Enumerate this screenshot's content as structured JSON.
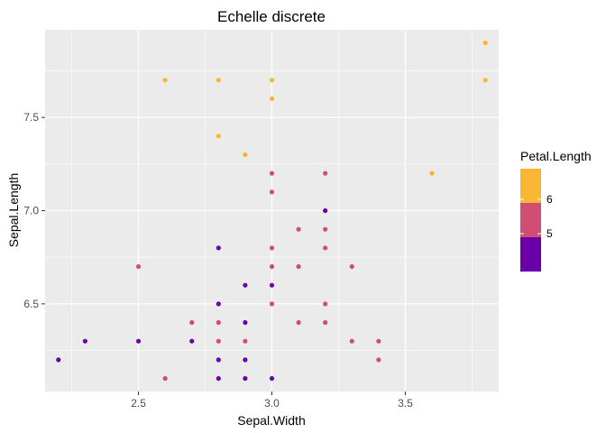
{
  "chart_data": {
    "type": "scatter",
    "title": "Echelle discrete",
    "xlabel": "Sepal.Width",
    "ylabel": "Sepal.Length",
    "xlim": [
      2.15,
      3.85
    ],
    "ylim": [
      6.03,
      7.97
    ],
    "x_ticks": [
      2.5,
      3.0,
      3.5
    ],
    "x_tick_labels": [
      "2.5",
      "3.0",
      "3.5"
    ],
    "y_ticks": [
      6.5,
      7.0,
      7.5
    ],
    "y_tick_labels": [
      "6.5",
      "7.0",
      "7.5"
    ],
    "grid": true,
    "legend": {
      "title": "Petal.Length",
      "position": "right",
      "labels": [
        "6",
        "5"
      ],
      "colors": [
        "#F9B632",
        "#D14E72",
        "#6A00A8"
      ]
    },
    "colors": {
      "panel_bg": "#EBEBEB",
      "grid_major": "#FFFFFF",
      "high": "#F9B632",
      "mid": "#D14E72",
      "low": "#6A00A8"
    },
    "points": [
      {
        "x": 3.8,
        "y": 7.9,
        "c": "high"
      },
      {
        "x": 3.8,
        "y": 7.7,
        "c": "high"
      },
      {
        "x": 2.6,
        "y": 7.7,
        "c": "high"
      },
      {
        "x": 2.8,
        "y": 7.7,
        "c": "high"
      },
      {
        "x": 3.0,
        "y": 7.7,
        "c": "high"
      },
      {
        "x": 3.0,
        "y": 7.6,
        "c": "high"
      },
      {
        "x": 2.8,
        "y": 7.4,
        "c": "high"
      },
      {
        "x": 2.9,
        "y": 7.3,
        "c": "high"
      },
      {
        "x": 3.6,
        "y": 7.2,
        "c": "high"
      },
      {
        "x": 3.0,
        "y": 7.2,
        "c": "mid"
      },
      {
        "x": 3.2,
        "y": 7.2,
        "c": "mid"
      },
      {
        "x": 3.0,
        "y": 7.1,
        "c": "mid"
      },
      {
        "x": 3.2,
        "y": 7.0,
        "c": "low"
      },
      {
        "x": 3.1,
        "y": 6.9,
        "c": "mid"
      },
      {
        "x": 3.2,
        "y": 6.9,
        "c": "mid"
      },
      {
        "x": 2.8,
        "y": 6.8,
        "c": "low"
      },
      {
        "x": 3.0,
        "y": 6.8,
        "c": "mid"
      },
      {
        "x": 3.2,
        "y": 6.8,
        "c": "mid"
      },
      {
        "x": 2.5,
        "y": 6.7,
        "c": "mid"
      },
      {
        "x": 3.0,
        "y": 6.7,
        "c": "mid"
      },
      {
        "x": 3.1,
        "y": 6.7,
        "c": "mid"
      },
      {
        "x": 3.3,
        "y": 6.7,
        "c": "mid"
      },
      {
        "x": 2.9,
        "y": 6.6,
        "c": "low"
      },
      {
        "x": 3.0,
        "y": 6.6,
        "c": "low"
      },
      {
        "x": 2.8,
        "y": 6.5,
        "c": "low"
      },
      {
        "x": 3.0,
        "y": 6.5,
        "c": "mid"
      },
      {
        "x": 3.2,
        "y": 6.5,
        "c": "mid"
      },
      {
        "x": 2.7,
        "y": 6.4,
        "c": "mid"
      },
      {
        "x": 2.8,
        "y": 6.4,
        "c": "mid"
      },
      {
        "x": 2.9,
        "y": 6.4,
        "c": "low"
      },
      {
        "x": 3.1,
        "y": 6.4,
        "c": "mid"
      },
      {
        "x": 3.2,
        "y": 6.4,
        "c": "mid"
      },
      {
        "x": 2.3,
        "y": 6.3,
        "c": "low"
      },
      {
        "x": 2.5,
        "y": 6.3,
        "c": "low"
      },
      {
        "x": 2.7,
        "y": 6.3,
        "c": "low"
      },
      {
        "x": 2.8,
        "y": 6.3,
        "c": "mid"
      },
      {
        "x": 2.9,
        "y": 6.3,
        "c": "mid"
      },
      {
        "x": 3.3,
        "y": 6.3,
        "c": "mid"
      },
      {
        "x": 3.4,
        "y": 6.3,
        "c": "mid"
      },
      {
        "x": 2.2,
        "y": 6.2,
        "c": "low"
      },
      {
        "x": 2.8,
        "y": 6.2,
        "c": "low"
      },
      {
        "x": 2.9,
        "y": 6.2,
        "c": "low"
      },
      {
        "x": 3.4,
        "y": 6.2,
        "c": "mid"
      },
      {
        "x": 2.6,
        "y": 6.1,
        "c": "mid"
      },
      {
        "x": 2.8,
        "y": 6.1,
        "c": "low"
      },
      {
        "x": 2.9,
        "y": 6.1,
        "c": "low"
      },
      {
        "x": 3.0,
        "y": 6.1,
        "c": "low"
      }
    ]
  }
}
